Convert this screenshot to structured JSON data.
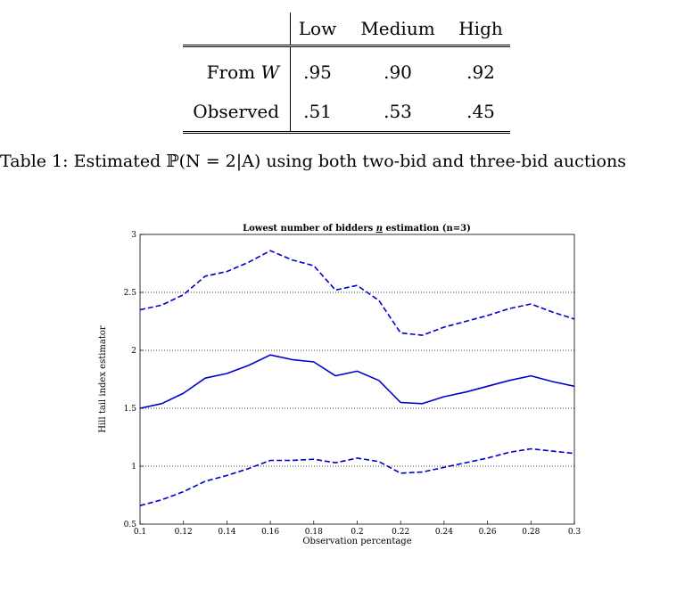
{
  "table": {
    "columns": [
      "Low",
      "Medium",
      "High"
    ],
    "rows": [
      {
        "label_prefix": "From ",
        "label_var": "W",
        "values": [
          ".95",
          ".90",
          ".92"
        ]
      },
      {
        "label_prefix": "Observed",
        "label_var": "",
        "values": [
          ".51",
          ".53",
          ".45"
        ]
      }
    ]
  },
  "caption": "Table 1:  Estimated ℙ(N = 2|A) using both two-bid and three-bid auctions",
  "chart_data": {
    "type": "line",
    "title": "Lowest number of bidders n estimation (n=3)",
    "title_parts": {
      "before": "Lowest number of bidders ",
      "underlined": "n",
      "after": " estimation (n=3)"
    },
    "xlabel": "Observation percentage",
    "ylabel": "Hill tail index estimator",
    "xlim": [
      0.1,
      0.3
    ],
    "ylim": [
      0.5,
      3
    ],
    "xticks": [
      "0.1",
      "0.12",
      "0.14",
      "0.16",
      "0.18",
      "0.2",
      "0.22",
      "0.24",
      "0.26",
      "0.28",
      "0.3"
    ],
    "yticks": [
      "0.5",
      "1",
      "1.5",
      "2",
      "2.5",
      "3"
    ],
    "grid": "horizontal dotted",
    "color": "#0000cc",
    "x": [
      0.1,
      0.11,
      0.12,
      0.13,
      0.14,
      0.15,
      0.16,
      0.17,
      0.18,
      0.19,
      0.2,
      0.21,
      0.22,
      0.23,
      0.24,
      0.25,
      0.26,
      0.27,
      0.28,
      0.29,
      0.3
    ],
    "series": [
      {
        "style": "dashed",
        "values": [
          2.35,
          2.39,
          2.48,
          2.64,
          2.68,
          2.76,
          2.86,
          2.78,
          2.73,
          2.52,
          2.56,
          2.43,
          2.15,
          2.13,
          2.2,
          2.25,
          2.3,
          2.36,
          2.4,
          2.33,
          2.27
        ]
      },
      {
        "style": "solid",
        "values": [
          1.5,
          1.54,
          1.63,
          1.76,
          1.8,
          1.87,
          1.96,
          1.92,
          1.9,
          1.78,
          1.82,
          1.74,
          1.55,
          1.54,
          1.6,
          1.64,
          1.69,
          1.74,
          1.78,
          1.73,
          1.69
        ]
      },
      {
        "style": "dashed",
        "values": [
          0.66,
          0.71,
          0.78,
          0.87,
          0.92,
          0.98,
          1.05,
          1.05,
          1.06,
          1.03,
          1.07,
          1.04,
          0.94,
          0.95,
          0.99,
          1.03,
          1.07,
          1.12,
          1.15,
          1.13,
          1.11
        ]
      }
    ]
  }
}
